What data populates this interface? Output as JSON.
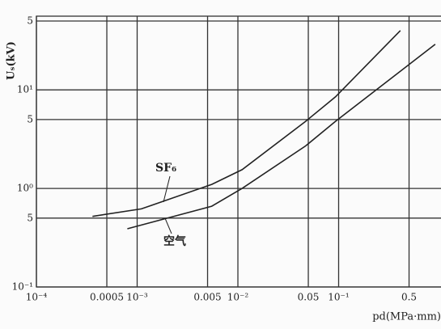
{
  "chart_data": {
    "type": "line",
    "y_label": "Uₛ(kV)",
    "x_label": "pd(MPa·mm)",
    "x_log": true,
    "y_log": true,
    "grid": true,
    "xlim": [
      0.0001,
      1
    ],
    "ylim": [
      0.1,
      50
    ],
    "xticks": [
      {
        "value": 0.0001,
        "label": "10⁻⁴"
      },
      0.0005,
      {
        "value": 0.001,
        "label": "10⁻³"
      },
      0.005,
      {
        "value": 0.01,
        "label": "10⁻²"
      },
      0.05,
      {
        "value": 0.1,
        "label": "10⁻¹"
      },
      0.5
    ],
    "yticks": [
      {
        "value": 0.1,
        "label": "10⁻¹"
      },
      {
        "value": 0.5,
        "label": "5"
      },
      {
        "value": 1,
        "label": "10⁰"
      },
      5,
      {
        "value": 10,
        "label": "10¹"
      },
      {
        "value": 50,
        "label": "5"
      }
    ],
    "series": [
      {
        "name": "SF₆",
        "color": "#222222",
        "x": [
          0.00036,
          0.0011,
          0.0055,
          0.011,
          0.047,
          0.093,
          0.41
        ],
        "values": [
          0.52,
          0.62,
          1.1,
          1.55,
          4.8,
          8.5,
          40
        ]
      },
      {
        "name": "空气",
        "color": "#222222",
        "x": [
          0.0008,
          0.0055,
          0.011,
          0.047,
          0.093,
          0.91
        ],
        "values": [
          0.39,
          0.66,
          1.0,
          2.7,
          4.8,
          29
        ]
      }
    ]
  }
}
